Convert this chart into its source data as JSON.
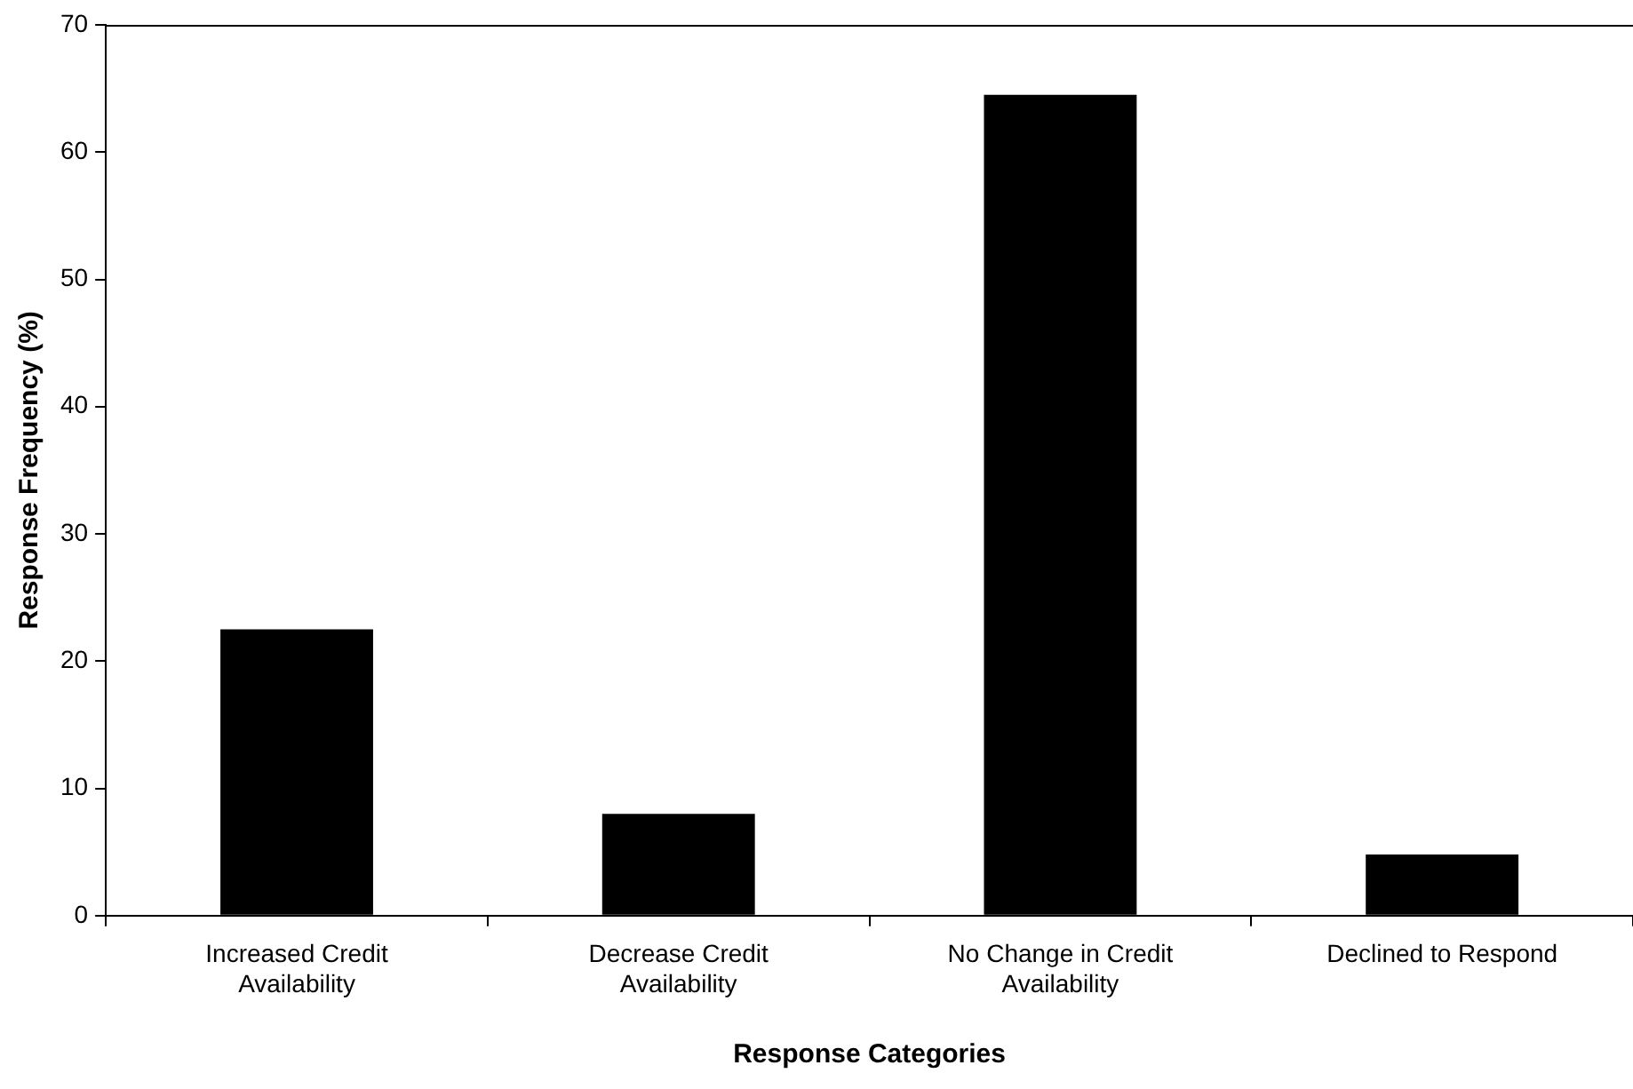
{
  "chart_data": {
    "type": "bar",
    "xlabel": "Response Categories",
    "ylabel": "Response Frequency (%)",
    "categories": [
      "Increased Credit Availability",
      "Decrease Credit Availability",
      "No Change in Credit Availability",
      "Declined to Respond"
    ],
    "values": [
      22.5,
      8.0,
      64.5,
      4.8
    ],
    "color": "#000000",
    "ylim": [
      0,
      70
    ],
    "yticks": [
      0,
      10,
      20,
      30,
      40,
      50,
      60,
      70
    ],
    "grid": false,
    "legend": false
  }
}
